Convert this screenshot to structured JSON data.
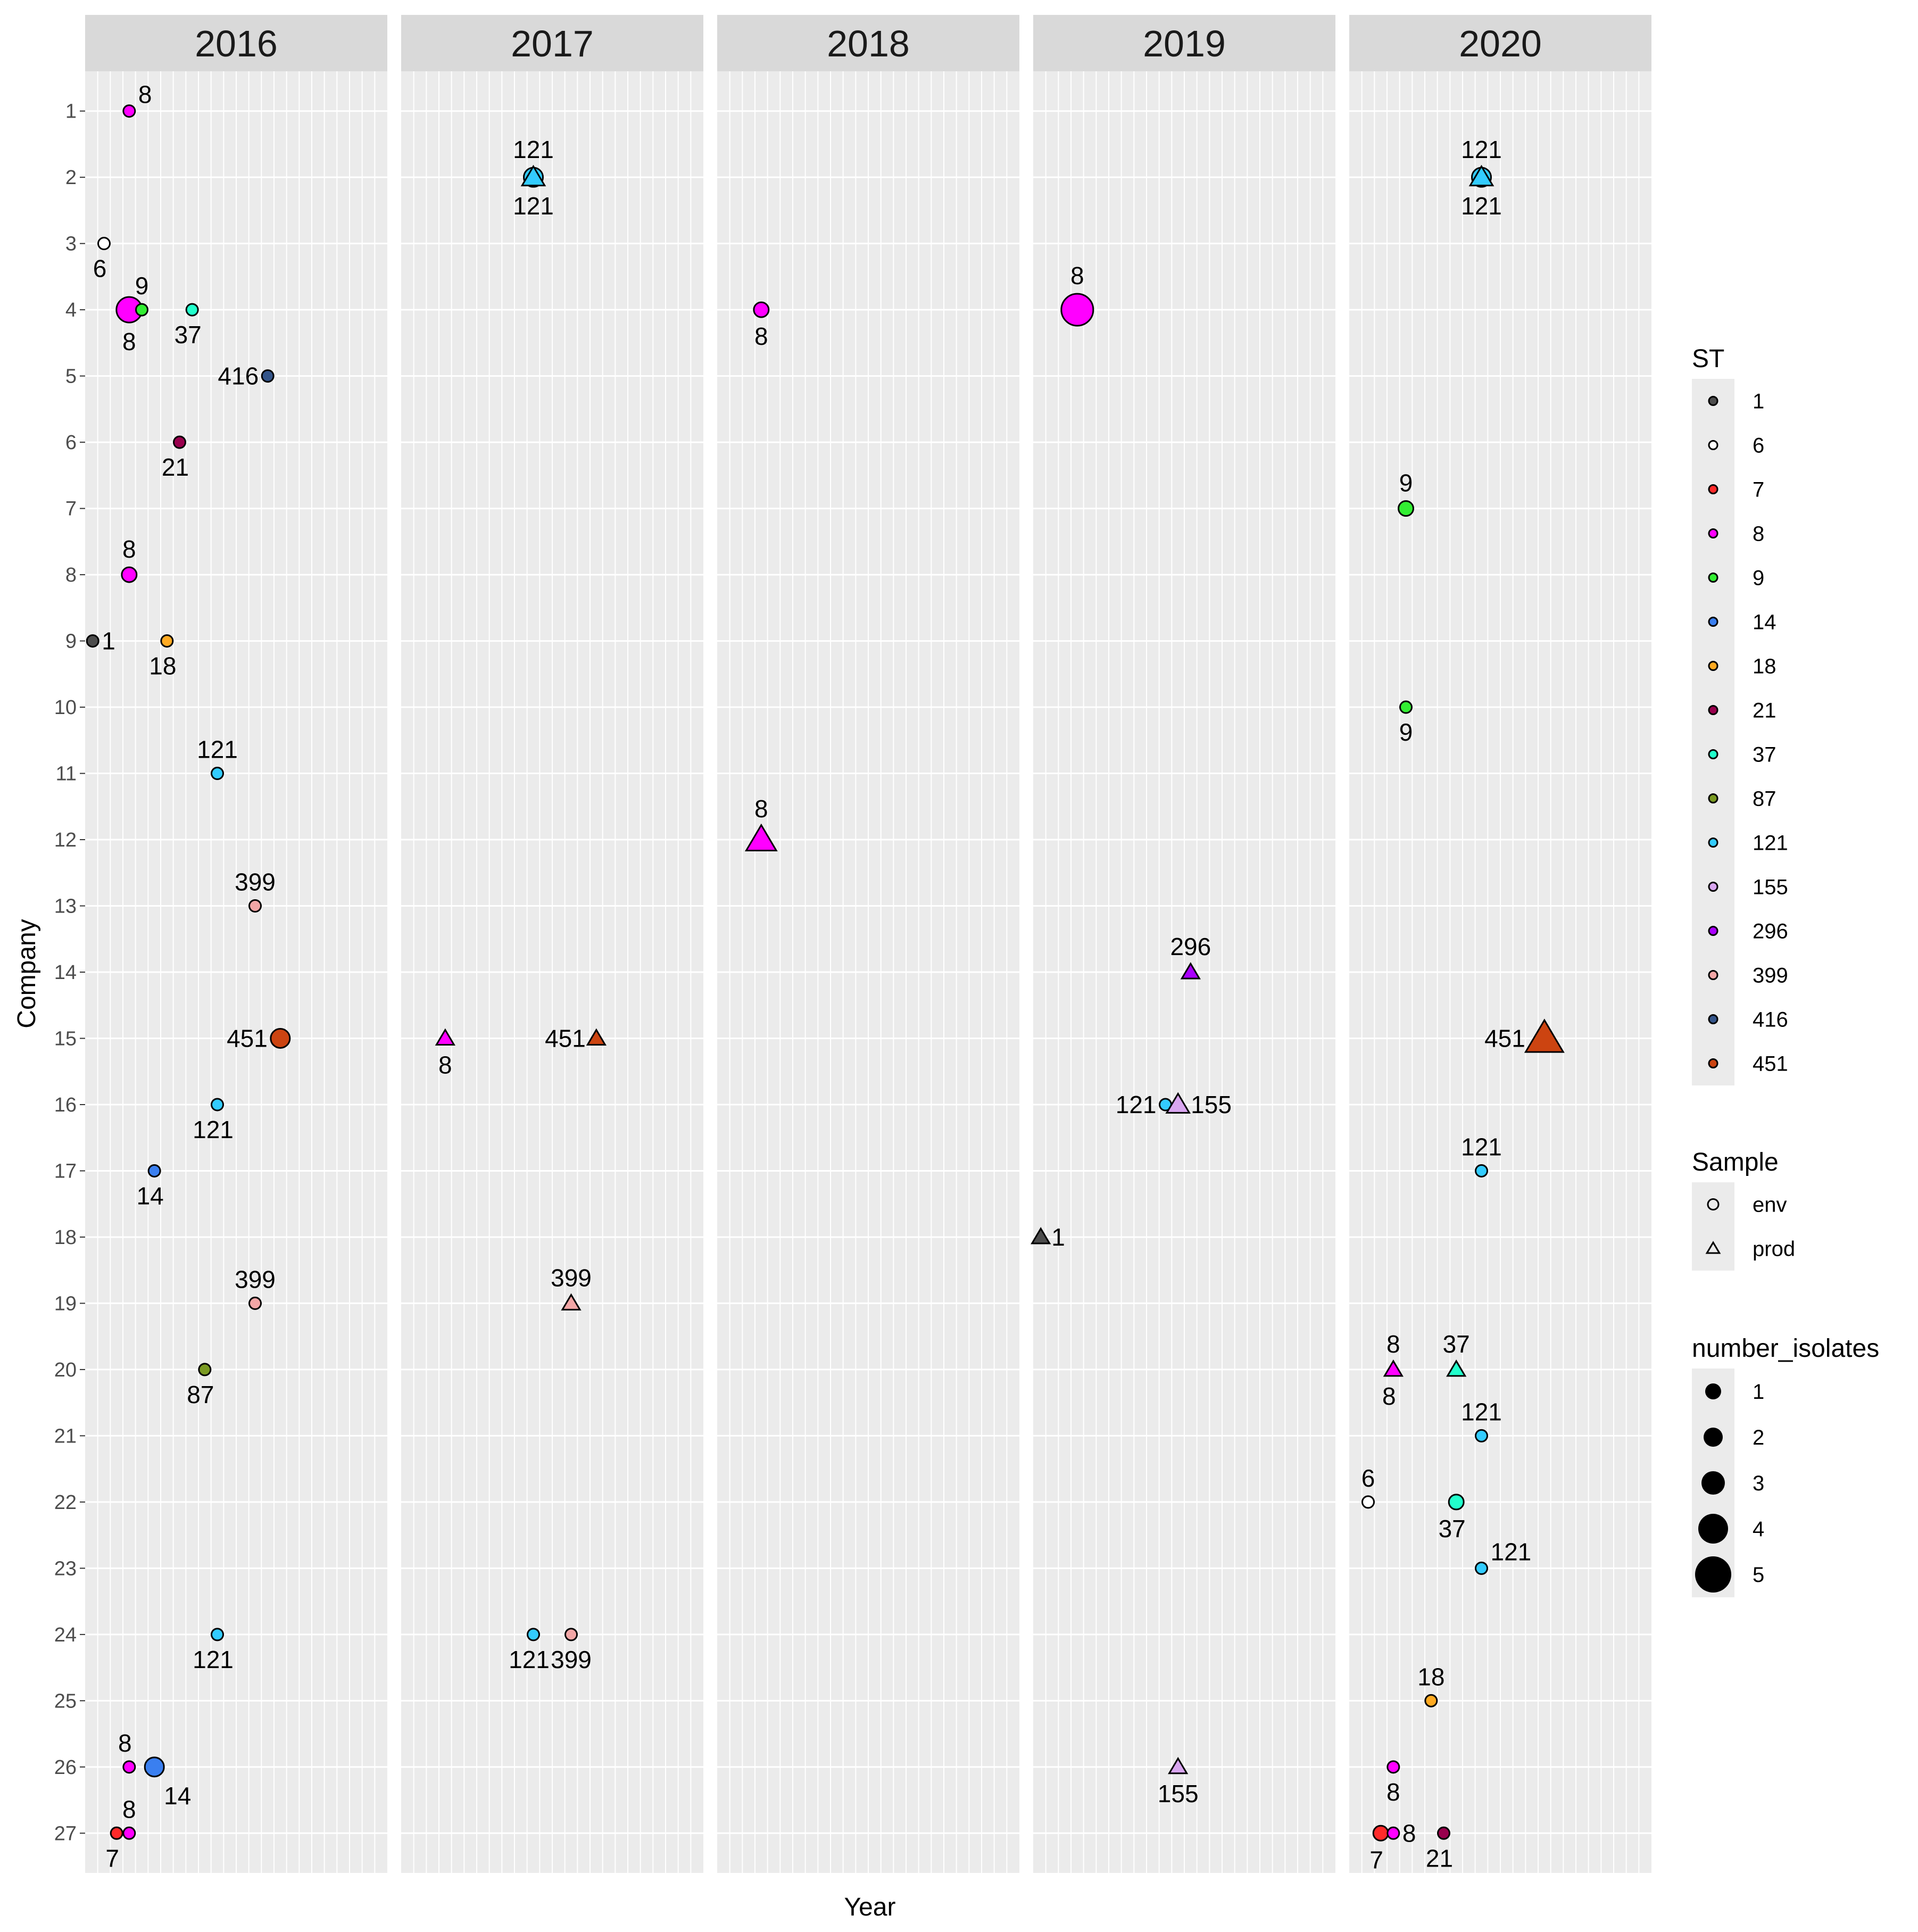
{
  "chart_data": {
    "type": "scatter",
    "xlabel": "Year",
    "ylabel": "Company",
    "facets": [
      "2016",
      "2017",
      "2018",
      "2019",
      "2020"
    ],
    "y_ticks": [
      "1",
      "2",
      "3",
      "4",
      "5",
      "6",
      "7",
      "8",
      "9",
      "10",
      "11",
      "12",
      "13",
      "14",
      "15",
      "16",
      "17",
      "18",
      "19",
      "20",
      "21",
      "22",
      "23",
      "24",
      "25",
      "26",
      "27"
    ],
    "ylim": [
      0.4,
      27.6
    ],
    "xlim": [
      0,
      24
    ],
    "st_colors": {
      "1": "#4d4d4d",
      "6": "#ffffff",
      "7": "#ff2a2a",
      "8": "#ff00ff",
      "9": "#33ee33",
      "14": "#3a7ff0",
      "18": "#ffaa22",
      "21": "#99004d",
      "37": "#22ffcc",
      "87": "#7a9a22",
      "121": "#33ccff",
      "155": "#d9a6f0",
      "296": "#aa00ff",
      "399": "#f2a6a6",
      "416": "#34558a",
      "451": "#cc4411"
    },
    "points": [
      {
        "year": "2016",
        "x": 3.5,
        "company": 1,
        "st": "8",
        "sample": "env",
        "n": 1,
        "label": "8",
        "lpos": "above-right"
      },
      {
        "year": "2016",
        "x": 1.5,
        "company": 3,
        "st": "6",
        "sample": "env",
        "n": 1,
        "label": "6",
        "lpos": "below-left"
      },
      {
        "year": "2016",
        "x": 3.5,
        "company": 4,
        "st": "8",
        "sample": "env",
        "n": 4,
        "label": "8",
        "lpos": "below"
      },
      {
        "year": "2016",
        "x": 4.5,
        "company": 4,
        "st": "9",
        "sample": "env",
        "n": 1,
        "label": "9",
        "lpos": "above"
      },
      {
        "year": "2016",
        "x": 8.5,
        "company": 4,
        "st": "37",
        "sample": "env",
        "n": 1,
        "label": "37",
        "lpos": "below-left"
      },
      {
        "year": "2016",
        "x": 14.5,
        "company": 5,
        "st": "416",
        "sample": "env",
        "n": 1,
        "label": "416",
        "lpos": "left"
      },
      {
        "year": "2016",
        "x": 7.5,
        "company": 6,
        "st": "21",
        "sample": "env",
        "n": 1,
        "label": "21",
        "lpos": "below-left"
      },
      {
        "year": "2016",
        "x": 3.5,
        "company": 8,
        "st": "8",
        "sample": "env",
        "n": 2,
        "label": "8",
        "lpos": "above"
      },
      {
        "year": "2016",
        "x": 0.6,
        "company": 9,
        "st": "1",
        "sample": "env",
        "n": 1,
        "label": "1",
        "lpos": "right"
      },
      {
        "year": "2016",
        "x": 6.5,
        "company": 9,
        "st": "18",
        "sample": "env",
        "n": 1,
        "label": "18",
        "lpos": "below-left"
      },
      {
        "year": "2016",
        "x": 10.5,
        "company": 11,
        "st": "121",
        "sample": "env",
        "n": 1,
        "label": "121",
        "lpos": "above"
      },
      {
        "year": "2016",
        "x": 13.5,
        "company": 13,
        "st": "399",
        "sample": "env",
        "n": 1,
        "label": "399",
        "lpos": "above"
      },
      {
        "year": "2016",
        "x": 15.5,
        "company": 15,
        "st": "451",
        "sample": "env",
        "n": 3,
        "label": "451",
        "lpos": "left"
      },
      {
        "year": "2016",
        "x": 10.5,
        "company": 16,
        "st": "121",
        "sample": "env",
        "n": 1,
        "label": "121",
        "lpos": "below-left"
      },
      {
        "year": "2016",
        "x": 5.5,
        "company": 17,
        "st": "14",
        "sample": "env",
        "n": 1,
        "label": "14",
        "lpos": "below-left"
      },
      {
        "year": "2016",
        "x": 13.5,
        "company": 19,
        "st": "399",
        "sample": "env",
        "n": 1,
        "label": "399",
        "lpos": "above"
      },
      {
        "year": "2016",
        "x": 9.5,
        "company": 20,
        "st": "87",
        "sample": "env",
        "n": 1,
        "label": "87",
        "lpos": "below-left"
      },
      {
        "year": "2016",
        "x": 10.5,
        "company": 24,
        "st": "121",
        "sample": "env",
        "n": 1,
        "label": "121",
        "lpos": "below-left"
      },
      {
        "year": "2016",
        "x": 3.5,
        "company": 26,
        "st": "8",
        "sample": "env",
        "n": 1,
        "label": "8",
        "lpos": "above-left"
      },
      {
        "year": "2016",
        "x": 5.5,
        "company": 26,
        "st": "14",
        "sample": "env",
        "n": 3,
        "label": "14",
        "lpos": "below-right"
      },
      {
        "year": "2016",
        "x": 2.5,
        "company": 27,
        "st": "7",
        "sample": "env",
        "n": 1,
        "label": "7",
        "lpos": "below-left"
      },
      {
        "year": "2016",
        "x": 3.5,
        "company": 27,
        "st": "8",
        "sample": "env",
        "n": 1,
        "label": "8",
        "lpos": "above"
      },
      {
        "year": "2017",
        "x": 10.5,
        "company": 2,
        "st": "121",
        "sample": "env",
        "n": 3,
        "label": "121",
        "lpos": "below"
      },
      {
        "year": "2017",
        "x": 10.5,
        "company": 2,
        "st": "121",
        "sample": "prod",
        "n": 3,
        "label": "121",
        "lpos": "above"
      },
      {
        "year": "2017",
        "x": 3.5,
        "company": 15,
        "st": "8",
        "sample": "prod",
        "n": 2,
        "label": "8",
        "lpos": "below"
      },
      {
        "year": "2017",
        "x": 15.5,
        "company": 15,
        "st": "451",
        "sample": "prod",
        "n": 2,
        "label": "451",
        "lpos": "left"
      },
      {
        "year": "2017",
        "x": 13.5,
        "company": 19,
        "st": "399",
        "sample": "prod",
        "n": 2,
        "label": "399",
        "lpos": "above"
      },
      {
        "year": "2017",
        "x": 10.5,
        "company": 24,
        "st": "121",
        "sample": "env",
        "n": 1,
        "label": "121",
        "lpos": "below-left"
      },
      {
        "year": "2017",
        "x": 13.5,
        "company": 24,
        "st": "399",
        "sample": "env",
        "n": 1,
        "label": "399",
        "lpos": "below"
      },
      {
        "year": "2018",
        "x": 3.5,
        "company": 4,
        "st": "8",
        "sample": "env",
        "n": 2,
        "label": "8",
        "lpos": "below"
      },
      {
        "year": "2018",
        "x": 3.5,
        "company": 12,
        "st": "8",
        "sample": "prod",
        "n": 4,
        "label": "8",
        "lpos": "above"
      },
      {
        "year": "2019",
        "x": 3.5,
        "company": 4,
        "st": "8",
        "sample": "env",
        "n": 5,
        "label": "8",
        "lpos": "above"
      },
      {
        "year": "2019",
        "x": 12.5,
        "company": 14,
        "st": "296",
        "sample": "prod",
        "n": 2,
        "label": "296",
        "lpos": "above"
      },
      {
        "year": "2019",
        "x": 10.5,
        "company": 16,
        "st": "121",
        "sample": "env",
        "n": 1,
        "label": "121",
        "lpos": "left"
      },
      {
        "year": "2019",
        "x": 11.5,
        "company": 16,
        "st": "155",
        "sample": "prod",
        "n": 3,
        "label": "155",
        "lpos": "right"
      },
      {
        "year": "2019",
        "x": 0.6,
        "company": 18,
        "st": "1",
        "sample": "prod",
        "n": 2,
        "label": "1",
        "lpos": "right"
      },
      {
        "year": "2019",
        "x": 11.5,
        "company": 26,
        "st": "155",
        "sample": "prod",
        "n": 2,
        "label": "155",
        "lpos": "below"
      },
      {
        "year": "2020",
        "x": 10.5,
        "company": 2,
        "st": "121",
        "sample": "env",
        "n": 3,
        "label": "121",
        "lpos": "below"
      },
      {
        "year": "2020",
        "x": 10.5,
        "company": 2,
        "st": "121",
        "sample": "prod",
        "n": 3,
        "label": "121",
        "lpos": "above"
      },
      {
        "year": "2020",
        "x": 4.5,
        "company": 7,
        "st": "9",
        "sample": "env",
        "n": 2,
        "label": "9",
        "lpos": "above"
      },
      {
        "year": "2020",
        "x": 4.5,
        "company": 10,
        "st": "9",
        "sample": "env",
        "n": 1,
        "label": "9",
        "lpos": "below"
      },
      {
        "year": "2020",
        "x": 15.5,
        "company": 15,
        "st": "451",
        "sample": "prod",
        "n": 5,
        "label": "451",
        "lpos": "left"
      },
      {
        "year": "2020",
        "x": 10.5,
        "company": 17,
        "st": "121",
        "sample": "env",
        "n": 1,
        "label": "121",
        "lpos": "above"
      },
      {
        "year": "2020",
        "x": 3.5,
        "company": 20,
        "st": "8",
        "sample": "prod",
        "n": 2,
        "label": "8",
        "lpos": "above-below"
      },
      {
        "year": "2020",
        "x": 8.5,
        "company": 20,
        "st": "37",
        "sample": "prod",
        "n": 2,
        "label": "37",
        "lpos": "above"
      },
      {
        "year": "2020",
        "x": 10.5,
        "company": 21,
        "st": "121",
        "sample": "env",
        "n": 1,
        "label": "121",
        "lpos": "above"
      },
      {
        "year": "2020",
        "x": 1.5,
        "company": 22,
        "st": "6",
        "sample": "env",
        "n": 1,
        "label": "6",
        "lpos": "above"
      },
      {
        "year": "2020",
        "x": 8.5,
        "company": 22,
        "st": "37",
        "sample": "env",
        "n": 2,
        "label": "37",
        "lpos": "below-left"
      },
      {
        "year": "2020",
        "x": 10.5,
        "company": 23,
        "st": "121",
        "sample": "env",
        "n": 1,
        "label": "121",
        "lpos": "above-right"
      },
      {
        "year": "2020",
        "x": 6.5,
        "company": 25,
        "st": "18",
        "sample": "env",
        "n": 1,
        "label": "18",
        "lpos": "above"
      },
      {
        "year": "2020",
        "x": 3.5,
        "company": 26,
        "st": "8",
        "sample": "env",
        "n": 1,
        "label": "8",
        "lpos": "below"
      },
      {
        "year": "2020",
        "x": 2.5,
        "company": 27,
        "st": "7",
        "sample": "env",
        "n": 2,
        "label": "7",
        "lpos": "below-left"
      },
      {
        "year": "2020",
        "x": 3.5,
        "company": 27,
        "st": "8",
        "sample": "env",
        "n": 1,
        "label": "8",
        "lpos": "right"
      },
      {
        "year": "2020",
        "x": 7.5,
        "company": 27,
        "st": "21",
        "sample": "env",
        "n": 1,
        "label": "21",
        "lpos": "below-left"
      }
    ],
    "legend": {
      "st": {
        "title": "ST",
        "items": [
          "1",
          "6",
          "7",
          "8",
          "9",
          "14",
          "18",
          "21",
          "37",
          "87",
          "121",
          "155",
          "296",
          "399",
          "416",
          "451"
        ]
      },
      "sample": {
        "title": "Sample",
        "items": [
          "env",
          "prod"
        ]
      },
      "size": {
        "title": "number_isolates",
        "items": [
          1,
          2,
          3,
          4,
          5
        ]
      }
    }
  }
}
